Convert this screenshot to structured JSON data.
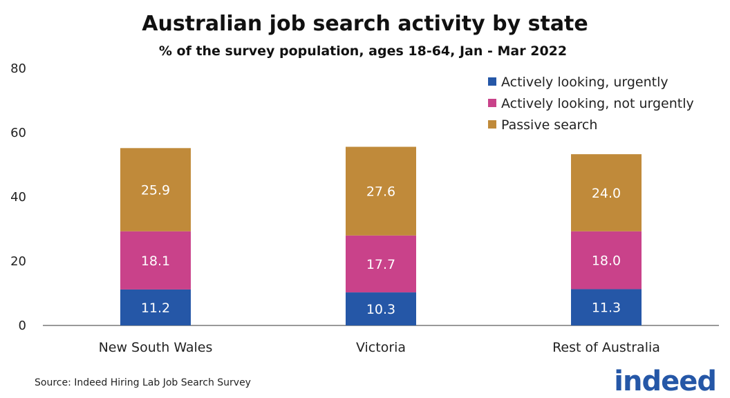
{
  "chart_data": {
    "type": "bar",
    "stacked": true,
    "title": "Australian job search activity by state",
    "subtitle": "% of the survey population, ages 18-64, Jan - Mar 2022",
    "categories": [
      "New South Wales",
      "Victoria",
      "Rest of Australia"
    ],
    "series": [
      {
        "name": "Actively looking, urgently",
        "color": "#2557a7",
        "values": [
          11.2,
          10.3,
          11.3
        ]
      },
      {
        "name": "Actively looking, not urgently",
        "color": "#c9428a",
        "values": [
          18.1,
          17.7,
          18.0
        ]
      },
      {
        "name": "Passive search",
        "color": "#c08a3a",
        "values": [
          25.9,
          27.6,
          24.0
        ]
      }
    ],
    "ylim": [
      0,
      80
    ],
    "yticks": [
      0,
      20,
      40,
      60,
      80
    ],
    "grid": false,
    "legend_position": "top-right",
    "data_labels": true
  },
  "source": "Source: Indeed Hiring Lab Job Search Survey",
  "logo_text": "indeed"
}
